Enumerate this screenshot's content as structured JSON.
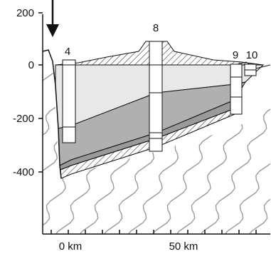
{
  "diagram": {
    "y_axis": {
      "ticks": [
        {
          "label": "200"
        },
        {
          "label": "0"
        },
        {
          "label": "-200"
        },
        {
          "label": "-400"
        }
      ]
    },
    "x_axis": {
      "ticks": [
        {
          "label": "0 km"
        },
        {
          "label": "50 km"
        }
      ]
    },
    "sites": [
      {
        "label": "4"
      },
      {
        "label": "8"
      },
      {
        "label": "9"
      },
      {
        "label": "10"
      }
    ],
    "colors": {
      "upper_layer": "#e8e8e8",
      "middle_layer": "#b0b0b0",
      "wavy_texture": "#9a9a9a",
      "outline": "#111111"
    }
  }
}
